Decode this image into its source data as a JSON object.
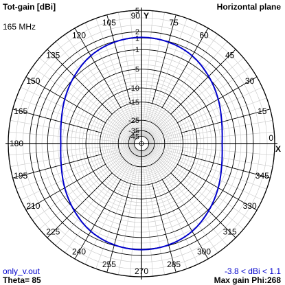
{
  "header": {
    "title": "Tot-gain [dBi]",
    "plane": "Horizontal plane",
    "frequency": "165 MHz",
    "axis_y": "Y",
    "axis_x": "X"
  },
  "footer": {
    "filename": "only_v.out",
    "theta": "Theta= 85",
    "range": "-3.8 < dBi < 1.1",
    "max_gain": "Max gain Phi:268"
  },
  "colors": {
    "trace": "#0000cc",
    "grid": "#c8c8c8",
    "major_grid": "#000000"
  },
  "chart_data": {
    "type": "polar",
    "title": "Tot-gain [dBi]",
    "subtitle": "Horizontal plane",
    "radial_ticks_dbi": [
      5,
      2,
      1,
      -1,
      -5,
      -10,
      -15,
      -25,
      -35,
      -45
    ],
    "angle_ticks_deg": [
      0,
      15,
      30,
      45,
      60,
      75,
      90,
      105,
      120,
      135,
      150,
      165,
      180,
      195,
      210,
      225,
      240,
      255,
      270,
      285,
      300,
      315,
      330,
      345
    ],
    "series": [
      {
        "name": "only_v.out",
        "phi_deg": [
          0,
          15,
          30,
          45,
          60,
          75,
          90,
          105,
          120,
          135,
          150,
          165,
          180,
          195,
          210,
          225,
          240,
          255,
          270,
          285,
          300,
          315,
          330,
          345,
          360
        ],
        "gain_dbi": [
          -3.6,
          -3.1,
          -2.0,
          -0.8,
          0.3,
          0.9,
          1.1,
          0.9,
          0.3,
          -0.8,
          -2.0,
          -3.1,
          -3.6,
          -3.1,
          -2.0,
          -0.8,
          0.3,
          0.9,
          1.1,
          0.9,
          0.3,
          -0.8,
          -2.0,
          -3.1,
          -3.6
        ]
      }
    ]
  }
}
